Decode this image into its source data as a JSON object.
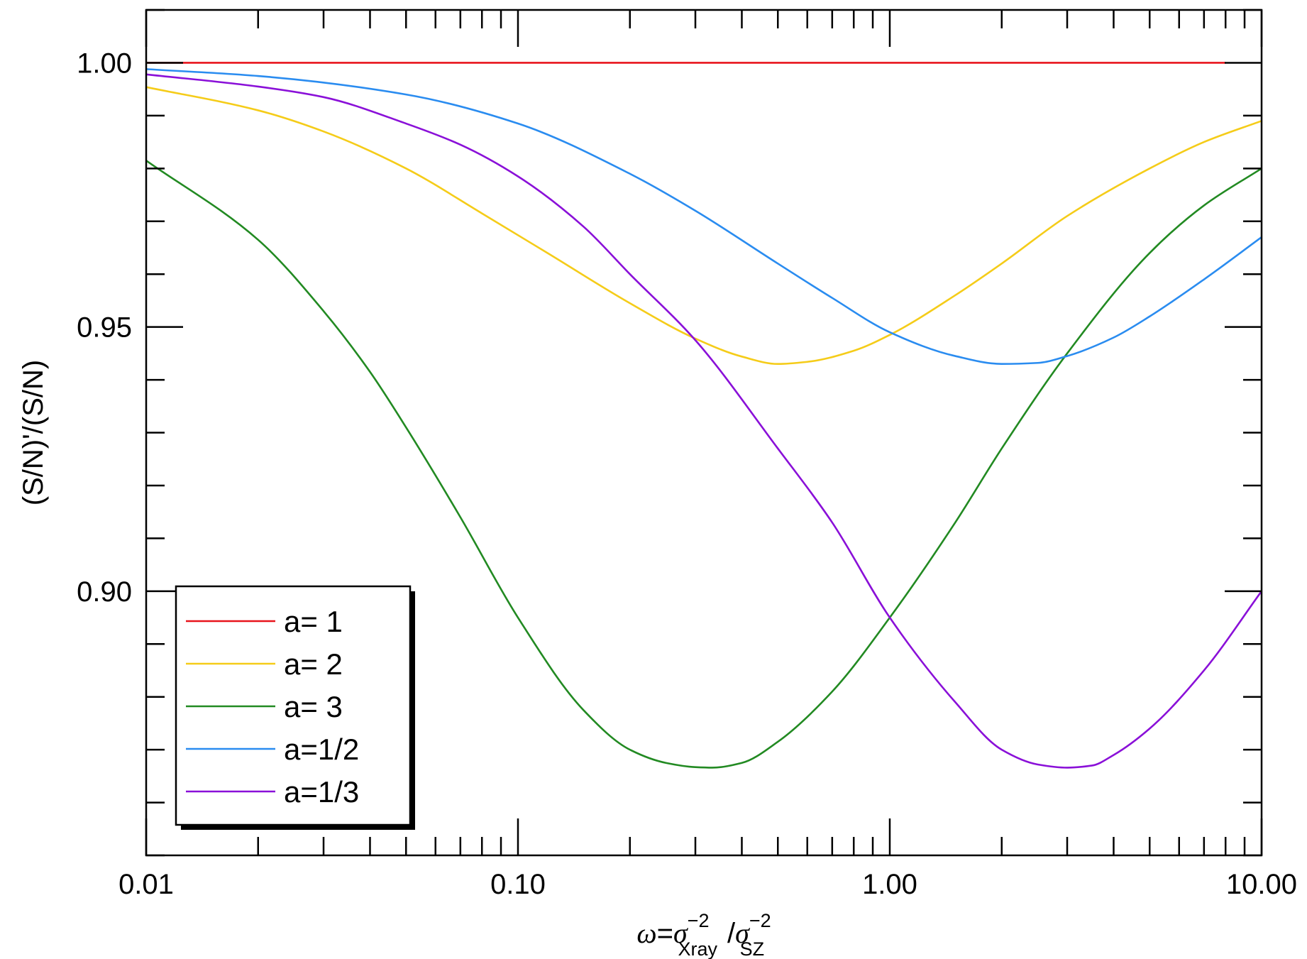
{
  "chart_data": {
    "type": "line",
    "x_scale": "log",
    "xlim": [
      0.01,
      10.0
    ],
    "ylim": [
      0.85,
      1.01
    ],
    "x_ticks": [
      {
        "value": 0.01,
        "label": "0.01"
      },
      {
        "value": 0.1,
        "label": "0.10"
      },
      {
        "value": 1.0,
        "label": "1.00"
      },
      {
        "value": 10.0,
        "label": "10.00"
      }
    ],
    "y_ticks": [
      {
        "value": 0.9,
        "label": "0.90"
      },
      {
        "value": 0.95,
        "label": "0.95"
      },
      {
        "value": 1.0,
        "label": "1.00"
      }
    ],
    "y_minor_step": 0.01,
    "ylabel": "(S/N)'/(S/N)",
    "xlabel": {
      "omega": "ω",
      "eq": "=",
      "sigma1": "σ",
      "sup1": "−2",
      "sub1": "Xray",
      "slash": "/",
      "sigma2": "σ",
      "sup2": "−2",
      "sub2": "SZ"
    },
    "legend_position": "bottom-left",
    "grid": false,
    "series": [
      {
        "name": "a= 1",
        "color": "#e8141c",
        "x": [
          0.01,
          0.1,
          1.0,
          8.0
        ],
        "y": [
          1.0,
          1.0,
          1.0,
          1.0
        ]
      },
      {
        "name": "a= 2",
        "color": "#f5cc19",
        "x": [
          0.01,
          0.02,
          0.03,
          0.05,
          0.08,
          0.12,
          0.2,
          0.3,
          0.4,
          0.5,
          0.6,
          0.8,
          1.0,
          1.5,
          2.0,
          3.0,
          5.0,
          7.0,
          10.0
        ],
        "y": [
          0.9954,
          0.991,
          0.987,
          0.98,
          0.9715,
          0.964,
          0.9545,
          0.9478,
          0.9444,
          0.943,
          0.9434,
          0.9455,
          0.9485,
          0.956,
          0.962,
          0.971,
          0.98,
          0.985,
          0.989
        ]
      },
      {
        "name": "a= 3",
        "color": "#228a22",
        "x": [
          0.01,
          0.02,
          0.03,
          0.04,
          0.05,
          0.07,
          0.1,
          0.15,
          0.2,
          0.25,
          0.3,
          0.333,
          0.4,
          0.5,
          0.7,
          1.0,
          1.5,
          2.0,
          3.0,
          5.0,
          7.0,
          10.0
        ],
        "y": [
          0.9815,
          0.9665,
          0.953,
          0.9415,
          0.931,
          0.914,
          0.895,
          0.8775,
          0.87,
          0.8675,
          0.8667,
          0.8666,
          0.8675,
          0.8715,
          0.881,
          0.895,
          0.913,
          0.927,
          0.945,
          0.964,
          0.973,
          0.98
        ]
      },
      {
        "name": "a=1/2",
        "color": "#2a8cf0",
        "x": [
          0.01,
          0.02,
          0.05,
          0.1,
          0.2,
          0.3,
          0.5,
          0.7,
          1.0,
          1.5,
          2.0,
          2.5,
          3.0,
          4.0,
          5.0,
          7.0,
          10.0
        ],
        "y": [
          0.9988,
          0.9975,
          0.994,
          0.9885,
          0.979,
          0.972,
          0.962,
          0.9555,
          0.949,
          0.9445,
          0.943,
          0.9432,
          0.9445,
          0.948,
          0.952,
          0.959,
          0.967
        ]
      },
      {
        "name": "a=1/3",
        "color": "#8a10d8",
        "x": [
          0.01,
          0.02,
          0.03,
          0.05,
          0.07,
          0.1,
          0.15,
          0.2,
          0.3,
          0.5,
          0.7,
          1.0,
          1.5,
          2.0,
          2.5,
          3.0,
          3.5,
          4.0,
          5.0,
          7.0,
          10.0
        ],
        "y": [
          0.9978,
          0.9955,
          0.9935,
          0.9885,
          0.9845,
          0.9785,
          0.969,
          0.96,
          0.9475,
          0.927,
          0.913,
          0.895,
          0.879,
          0.87,
          0.8672,
          0.8666,
          0.867,
          0.869,
          0.874,
          0.885,
          0.9
        ]
      }
    ]
  }
}
